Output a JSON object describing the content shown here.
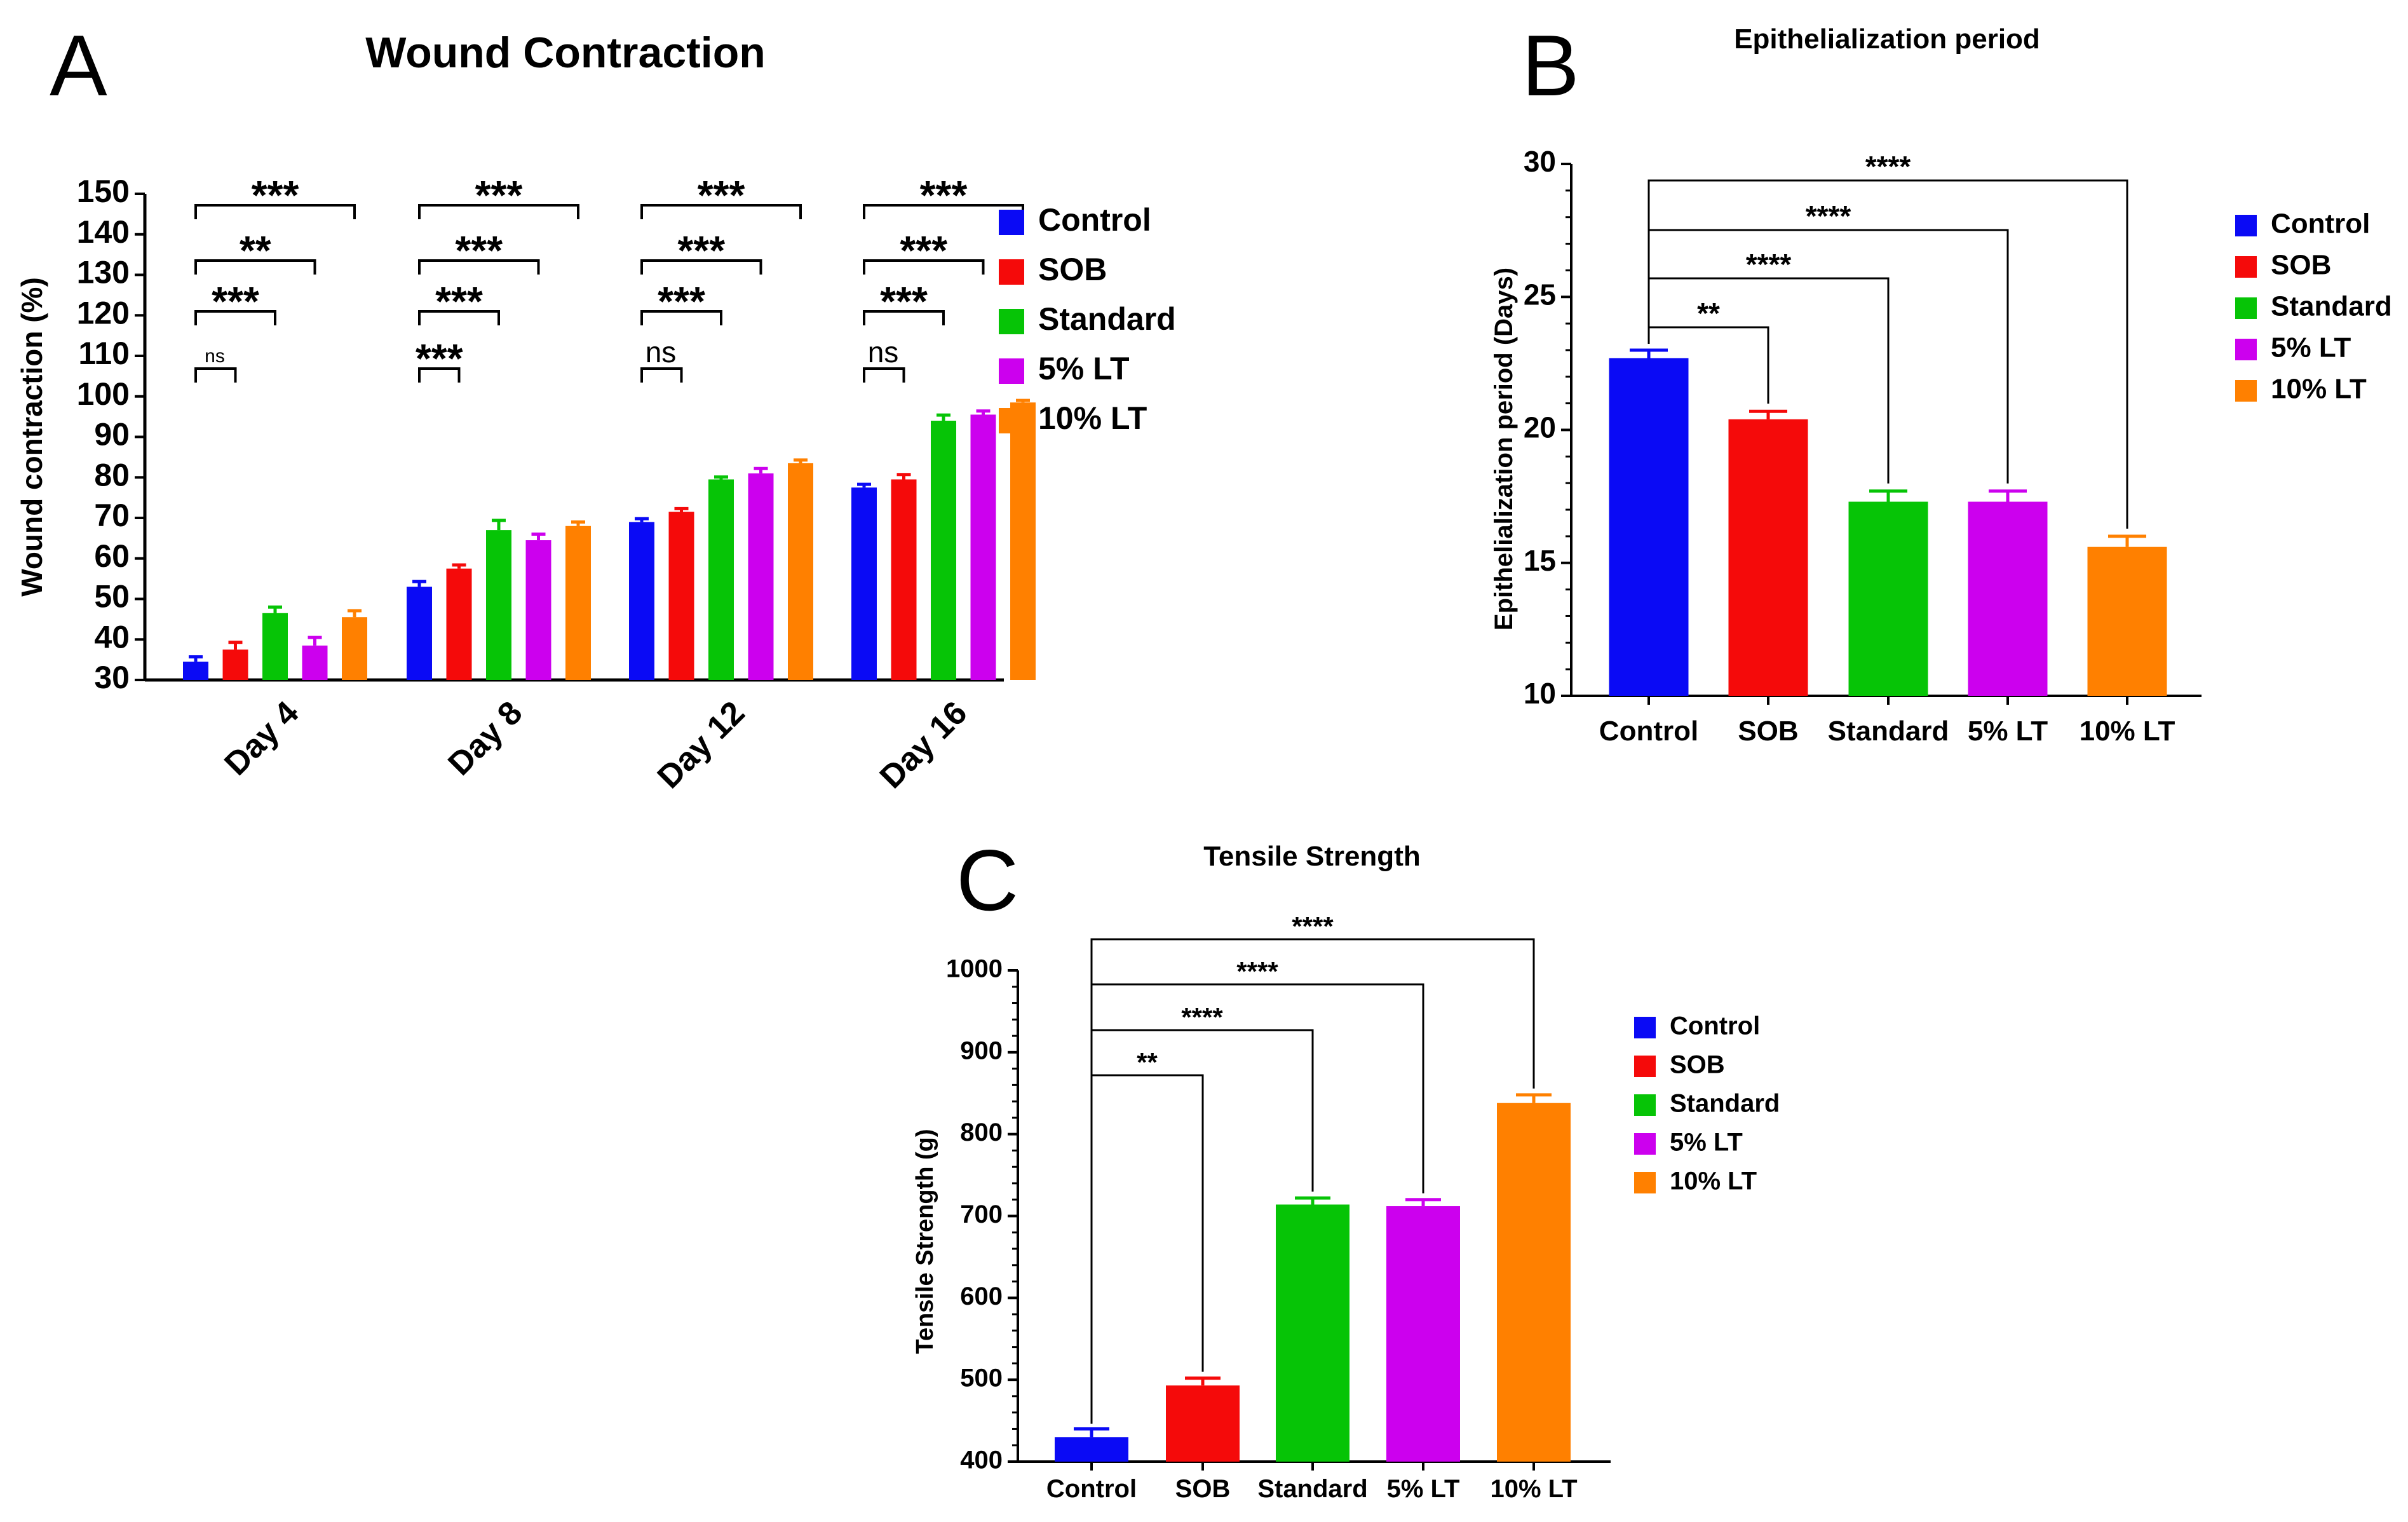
{
  "colors": {
    "Control": "#0A0AF5",
    "SOB": "#F50A0A",
    "Standard": "#06C406",
    "5% LT": "#CC00EE",
    "10% LT": "#FF8000"
  },
  "chart_data": [
    {
      "panel_label": "A",
      "type": "bar",
      "title": "Wound Contraction",
      "xlabel": "",
      "ylabel": "Wound contraction (%)",
      "ylim": [
        30,
        150
      ],
      "yticks": [
        "30",
        "40",
        "50",
        "60",
        "70",
        "80",
        "90",
        "100",
        "110",
        "120",
        "130",
        "140",
        "150"
      ],
      "categories": [
        "Day 4",
        "Day 8",
        "Day 12",
        "Day 16"
      ],
      "legend": [
        "Control",
        "SOB",
        "Standard",
        "5% LT",
        "10% LT"
      ],
      "legend_position": "right",
      "series": [
        {
          "name": "Control",
          "values": [
            34.5,
            53,
            69,
            77.5
          ],
          "errors": [
            1.2,
            1.3,
            0.8,
            0.8
          ]
        },
        {
          "name": "SOB",
          "values": [
            37.5,
            57.5,
            71.5,
            79.5
          ],
          "errors": [
            1.8,
            0.9,
            0.8,
            1.2
          ]
        },
        {
          "name": "Standard",
          "values": [
            46.5,
            67,
            79.5,
            94
          ],
          "errors": [
            1.5,
            2.4,
            0.6,
            1.4
          ]
        },
        {
          "name": "5% LT",
          "values": [
            38.5,
            64.5,
            81,
            95.5
          ],
          "errors": [
            2,
            1.5,
            1.2,
            0.9
          ]
        },
        {
          "name": "10% LT",
          "values": [
            45.5,
            68,
            83.5,
            98.5
          ],
          "errors": [
            1.6,
            1,
            0.8,
            0.5
          ]
        }
      ],
      "significance": [
        {
          "category": "Day 4",
          "comparisons": [
            {
              "from": "Control",
              "to": "SOB",
              "label": "ns"
            },
            {
              "from": "Control",
              "to": "Standard",
              "label": "***"
            },
            {
              "from": "Control",
              "to": "5% LT",
              "label": "**"
            },
            {
              "from": "Control",
              "to": "10% LT",
              "label": "***"
            }
          ]
        },
        {
          "category": "Day 8",
          "comparisons": [
            {
              "from": "Control",
              "to": "SOB",
              "label": "***"
            },
            {
              "from": "Control",
              "to": "Standard",
              "label": "***"
            },
            {
              "from": "Control",
              "to": "5% LT",
              "label": "***"
            },
            {
              "from": "Control",
              "to": "10% LT",
              "label": "***"
            }
          ]
        },
        {
          "category": "Day 12",
          "comparisons": [
            {
              "from": "Control",
              "to": "SOB",
              "label": "ns"
            },
            {
              "from": "Control",
              "to": "Standard",
              "label": "***"
            },
            {
              "from": "Control",
              "to": "5% LT",
              "label": "***"
            },
            {
              "from": "Control",
              "to": "10% LT",
              "label": "***"
            }
          ]
        },
        {
          "category": "Day 16",
          "comparisons": [
            {
              "from": "Control",
              "to": "SOB",
              "label": "ns"
            },
            {
              "from": "Control",
              "to": "Standard",
              "label": "***"
            },
            {
              "from": "Control",
              "to": "5% LT",
              "label": "***"
            },
            {
              "from": "Control",
              "to": "10% LT",
              "label": "***"
            }
          ]
        }
      ]
    },
    {
      "panel_label": "B",
      "type": "bar",
      "title": "Epithelialization period",
      "xlabel": "",
      "ylabel": "Epithelialization period (Days)",
      "ylim": [
        10,
        30
      ],
      "yticks": [
        "10",
        "15",
        "20",
        "25",
        "30"
      ],
      "categories": [
        "Control",
        "SOB",
        "Standard",
        "5% LT",
        "10% LT"
      ],
      "legend": [
        "Control",
        "SOB",
        "Standard",
        "5% LT",
        "10% LT"
      ],
      "legend_position": "right",
      "values": [
        22.7,
        20.4,
        17.3,
        17.3,
        15.6
      ],
      "errors": [
        0.3,
        0.3,
        0.4,
        0.4,
        0.4
      ],
      "significance": [
        {
          "from": "Control",
          "to": "SOB",
          "label": "**"
        },
        {
          "from": "Control",
          "to": "Standard",
          "label": "****"
        },
        {
          "from": "Control",
          "to": "5% LT",
          "label": "****"
        },
        {
          "from": "Control",
          "to": "10% LT",
          "label": "****"
        }
      ]
    },
    {
      "panel_label": "C",
      "type": "bar",
      "title": "Tensile Strength",
      "xlabel": "",
      "ylabel": "Tensile Strength (g)",
      "ylim": [
        400,
        1000
      ],
      "yticks": [
        "400",
        "500",
        "600",
        "700",
        "800",
        "900",
        "1000"
      ],
      "categories": [
        "Control",
        "SOB",
        "Standard",
        "5% LT",
        "10% LT"
      ],
      "legend": [
        "Control",
        "SOB",
        "Standard",
        "5% LT",
        "10% LT"
      ],
      "legend_position": "right",
      "values": [
        430,
        493,
        714,
        712,
        838
      ],
      "errors": [
        10,
        9,
        8,
        8,
        10
      ],
      "significance": [
        {
          "from": "Control",
          "to": "SOB",
          "label": "**"
        },
        {
          "from": "Control",
          "to": "Standard",
          "label": "****"
        },
        {
          "from": "Control",
          "to": "5% LT",
          "label": "****"
        },
        {
          "from": "Control",
          "to": "10% LT",
          "label": "****"
        }
      ]
    }
  ]
}
